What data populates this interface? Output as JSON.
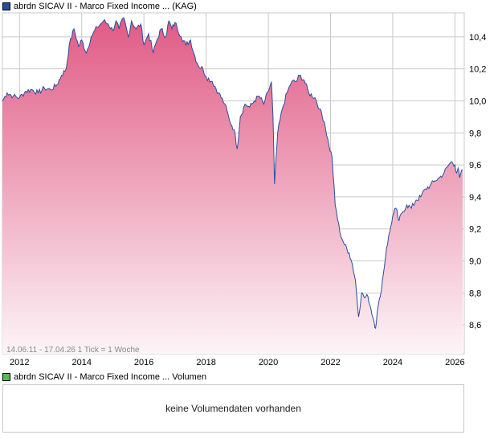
{
  "price_legend": {
    "label": "abrdn SICAV II - Marco Fixed Income ... (KAG)",
    "color": "#2a4d9c"
  },
  "volume_legend": {
    "label": "abrdn SICAV II - Marco Fixed Income ... Volumen",
    "color": "#55bb55"
  },
  "info_text": "14.06.11 - 17.04.26   1 Tick = 1 Woche",
  "volume_message": "keine Volumendaten vorhanden",
  "colors": {
    "line": "#2a4d9c",
    "fill_top": "#e05a85",
    "fill_bottom": "#fdf4f7",
    "grid": "#c8c8c8"
  },
  "chart_data": {
    "type": "area",
    "title": "abrdn SICAV II - Marco Fixed Income ... (KAG)",
    "xlabel": "",
    "ylabel": "",
    "x_ticks": [
      "2012",
      "2014",
      "2016",
      "2018",
      "2020",
      "2022",
      "2024",
      "2026"
    ],
    "y_ticks": [
      "8,6",
      "8,8",
      "9,0",
      "9,2",
      "9,4",
      "9,6",
      "9,8",
      "10,0",
      "10,2",
      "10,4"
    ],
    "xlim": [
      2011.45,
      2026.3
    ],
    "ylim": [
      8.42,
      10.55
    ],
    "grid": true,
    "series": [
      {
        "name": "abrdn SICAV II - Marco Fixed Income ... (KAG)",
        "points": [
          [
            2011.45,
            10.0
          ],
          [
            2011.6,
            10.05
          ],
          [
            2011.8,
            10.03
          ],
          [
            2012.0,
            10.02
          ],
          [
            2012.2,
            10.06
          ],
          [
            2012.4,
            10.07
          ],
          [
            2012.6,
            10.05
          ],
          [
            2012.8,
            10.08
          ],
          [
            2013.0,
            10.07
          ],
          [
            2013.2,
            10.1
          ],
          [
            2013.35,
            10.16
          ],
          [
            2013.5,
            10.2
          ],
          [
            2013.6,
            10.35
          ],
          [
            2013.75,
            10.45
          ],
          [
            2013.9,
            10.34
          ],
          [
            2014.0,
            10.38
          ],
          [
            2014.15,
            10.3
          ],
          [
            2014.3,
            10.4
          ],
          [
            2014.5,
            10.46
          ],
          [
            2014.7,
            10.5
          ],
          [
            2014.85,
            10.48
          ],
          [
            2015.0,
            10.44
          ],
          [
            2015.1,
            10.5
          ],
          [
            2015.2,
            10.45
          ],
          [
            2015.35,
            10.52
          ],
          [
            2015.5,
            10.4
          ],
          [
            2015.6,
            10.5
          ],
          [
            2015.75,
            10.45
          ],
          [
            2015.9,
            10.48
          ],
          [
            2016.0,
            10.35
          ],
          [
            2016.15,
            10.42
          ],
          [
            2016.3,
            10.3
          ],
          [
            2016.4,
            10.37
          ],
          [
            2016.55,
            10.45
          ],
          [
            2016.7,
            10.4
          ],
          [
            2016.8,
            10.5
          ],
          [
            2016.9,
            10.45
          ],
          [
            2017.0,
            10.49
          ],
          [
            2017.2,
            10.4
          ],
          [
            2017.35,
            10.35
          ],
          [
            2017.5,
            10.38
          ],
          [
            2017.6,
            10.3
          ],
          [
            2017.75,
            10.22
          ],
          [
            2017.9,
            10.2
          ],
          [
            2018.0,
            10.15
          ],
          [
            2018.2,
            10.12
          ],
          [
            2018.4,
            10.05
          ],
          [
            2018.6,
            9.98
          ],
          [
            2018.75,
            9.88
          ],
          [
            2018.9,
            9.82
          ],
          [
            2019.0,
            9.7
          ],
          [
            2019.1,
            9.9
          ],
          [
            2019.25,
            9.98
          ],
          [
            2019.4,
            9.96
          ],
          [
            2019.55,
            10.0
          ],
          [
            2019.7,
            10.03
          ],
          [
            2019.85,
            9.98
          ],
          [
            2020.0,
            10.06
          ],
          [
            2020.1,
            10.12
          ],
          [
            2020.15,
            9.9
          ],
          [
            2020.2,
            9.48
          ],
          [
            2020.3,
            9.8
          ],
          [
            2020.45,
            9.95
          ],
          [
            2020.6,
            10.05
          ],
          [
            2020.75,
            10.12
          ],
          [
            2020.9,
            10.12
          ],
          [
            2021.0,
            10.16
          ],
          [
            2021.15,
            10.13
          ],
          [
            2021.3,
            10.05
          ],
          [
            2021.5,
            10.02
          ],
          [
            2021.65,
            9.95
          ],
          [
            2021.8,
            9.87
          ],
          [
            2021.95,
            9.72
          ],
          [
            2022.05,
            9.65
          ],
          [
            2022.15,
            9.35
          ],
          [
            2022.3,
            9.18
          ],
          [
            2022.45,
            9.1
          ],
          [
            2022.6,
            9.05
          ],
          [
            2022.7,
            8.98
          ],
          [
            2022.8,
            8.88
          ],
          [
            2022.9,
            8.65
          ],
          [
            2023.0,
            8.8
          ],
          [
            2023.1,
            8.77
          ],
          [
            2023.2,
            8.78
          ],
          [
            2023.3,
            8.7
          ],
          [
            2023.4,
            8.62
          ],
          [
            2023.45,
            8.58
          ],
          [
            2023.5,
            8.68
          ],
          [
            2023.6,
            8.78
          ],
          [
            2023.7,
            8.92
          ],
          [
            2023.8,
            9.08
          ],
          [
            2023.9,
            9.18
          ],
          [
            2024.0,
            9.28
          ],
          [
            2024.1,
            9.33
          ],
          [
            2024.2,
            9.25
          ],
          [
            2024.3,
            9.3
          ],
          [
            2024.45,
            9.35
          ],
          [
            2024.6,
            9.33
          ],
          [
            2024.75,
            9.38
          ],
          [
            2024.9,
            9.4
          ],
          [
            2025.05,
            9.45
          ],
          [
            2025.2,
            9.47
          ],
          [
            2025.35,
            9.5
          ],
          [
            2025.5,
            9.52
          ],
          [
            2025.65,
            9.55
          ],
          [
            2025.8,
            9.6
          ],
          [
            2025.9,
            9.62
          ],
          [
            2026.0,
            9.6
          ],
          [
            2026.05,
            9.55
          ],
          [
            2026.1,
            9.58
          ],
          [
            2026.15,
            9.52
          ],
          [
            2026.25,
            9.57
          ]
        ]
      }
    ]
  }
}
